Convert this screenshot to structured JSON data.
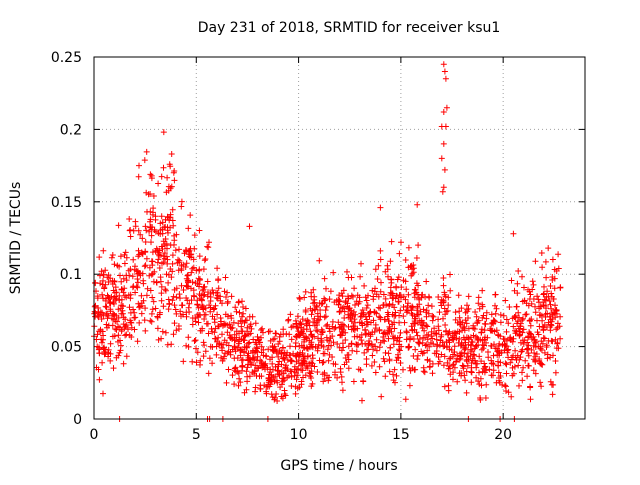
{
  "chart_data": {
    "type": "scatter",
    "title": "Day 231 of 2018, SRMTID for receiver ksu1",
    "xlabel": "GPS time / hours",
    "ylabel": "SRMTID / TECUs",
    "xlim": [
      0,
      24
    ],
    "ylim": [
      0,
      0.25
    ],
    "xticks": [
      0,
      5,
      10,
      15,
      20
    ],
    "yticks": [
      0,
      0.05,
      0.1,
      0.15,
      0.2,
      0.25
    ],
    "xtick_labels": [
      "0",
      "5",
      "10",
      "15",
      "20"
    ],
    "ytick_labels": [
      "0",
      "0.05",
      "0.1",
      "0.15",
      "0.2",
      "0.25"
    ],
    "grid": true,
    "marker": "+",
    "series": [
      {
        "name": "SRMTID",
        "color": "#ff0000",
        "envelope": {
          "x": [
            0,
            1,
            2,
            2.5,
            3,
            3.7,
            4,
            5,
            6,
            7,
            8,
            8.5,
            9,
            10,
            11,
            12,
            13,
            14,
            15,
            16,
            17,
            18,
            19,
            20,
            21,
            22,
            22.8
          ],
          "y": [
            0.07,
            0.072,
            0.095,
            0.11,
            0.11,
            0.118,
            0.1,
            0.085,
            0.07,
            0.055,
            0.04,
            0.035,
            0.038,
            0.05,
            0.06,
            0.062,
            0.063,
            0.07,
            0.072,
            0.068,
            0.058,
            0.055,
            0.05,
            0.048,
            0.06,
            0.068,
            0.07
          ],
          "spread": [
            0.02,
            0.022,
            0.025,
            0.03,
            0.03,
            0.028,
            0.025,
            0.022,
            0.018,
            0.016,
            0.015,
            0.014,
            0.014,
            0.015,
            0.017,
            0.018,
            0.018,
            0.022,
            0.022,
            0.02,
            0.018,
            0.017,
            0.016,
            0.015,
            0.018,
            0.02,
            0.02
          ]
        },
        "count": 2200,
        "peaks": [
          {
            "x": 2.2,
            "y": 0.175
          },
          {
            "x": 3.8,
            "y": 0.183
          },
          {
            "x": 3.7,
            "y": 0.176
          },
          {
            "x": 3.9,
            "y": 0.17
          },
          {
            "x": 7.6,
            "y": 0.133
          },
          {
            "x": 14.0,
            "y": 0.146
          },
          {
            "x": 15.8,
            "y": 0.148
          },
          {
            "x": 17.1,
            "y": 0.245
          },
          {
            "x": 17.15,
            "y": 0.24
          },
          {
            "x": 17.2,
            "y": 0.235
          },
          {
            "x": 17.25,
            "y": 0.215
          },
          {
            "x": 17.1,
            "y": 0.212
          },
          {
            "x": 17.2,
            "y": 0.202
          },
          {
            "x": 17.0,
            "y": 0.202
          },
          {
            "x": 17.1,
            "y": 0.19
          },
          {
            "x": 17.0,
            "y": 0.18
          },
          {
            "x": 17.15,
            "y": 0.172
          },
          {
            "x": 17.1,
            "y": 0.16
          },
          {
            "x": 17.05,
            "y": 0.157
          },
          {
            "x": 20.5,
            "y": 0.128
          },
          {
            "x": 22.2,
            "y": 0.118
          }
        ],
        "zero_points": [
          1.25,
          5.55,
          5.65,
          6.3,
          8.5,
          18.3,
          19.85,
          20.55
        ]
      }
    ]
  }
}
